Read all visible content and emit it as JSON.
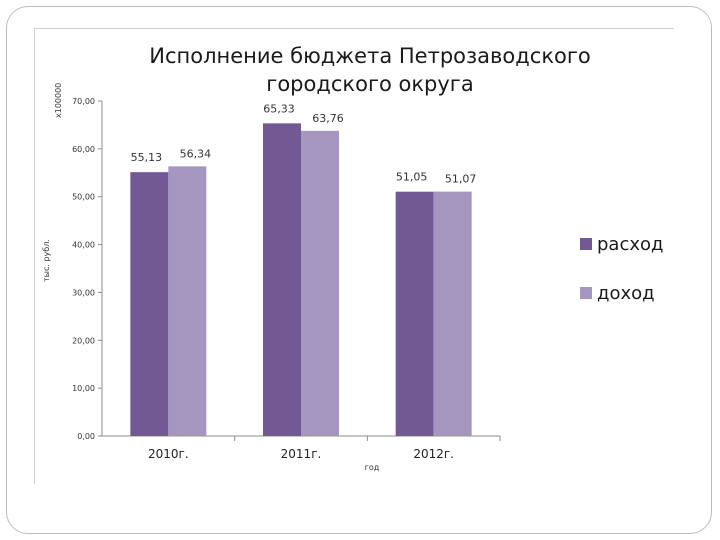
{
  "chart_data": {
    "type": "bar",
    "title": "Исполнение бюджета Петрозаводского городского округа",
    "multiplier_label": "x100000",
    "ylabel": "тыс. рубл.",
    "xlabel": "год",
    "categories": [
      "2010г.",
      "2011г.",
      "2012г."
    ],
    "ylim": [
      0,
      70
    ],
    "yticks": [
      "0,00",
      "10,00",
      "20,00",
      "30,00",
      "40,00",
      "50,00",
      "60,00",
      "70,00"
    ],
    "series": [
      {
        "name": "расход",
        "values": [
          55.13,
          65.33,
          51.05
        ],
        "labels": [
          "55,13",
          "65,33",
          "51,05"
        ],
        "color": "#735994"
      },
      {
        "name": "доход",
        "values": [
          56.34,
          63.76,
          51.07
        ],
        "labels": [
          "56,34",
          "63,76",
          "51,07"
        ],
        "color": "#a596bf"
      }
    ],
    "grid": false,
    "legend": "right"
  }
}
